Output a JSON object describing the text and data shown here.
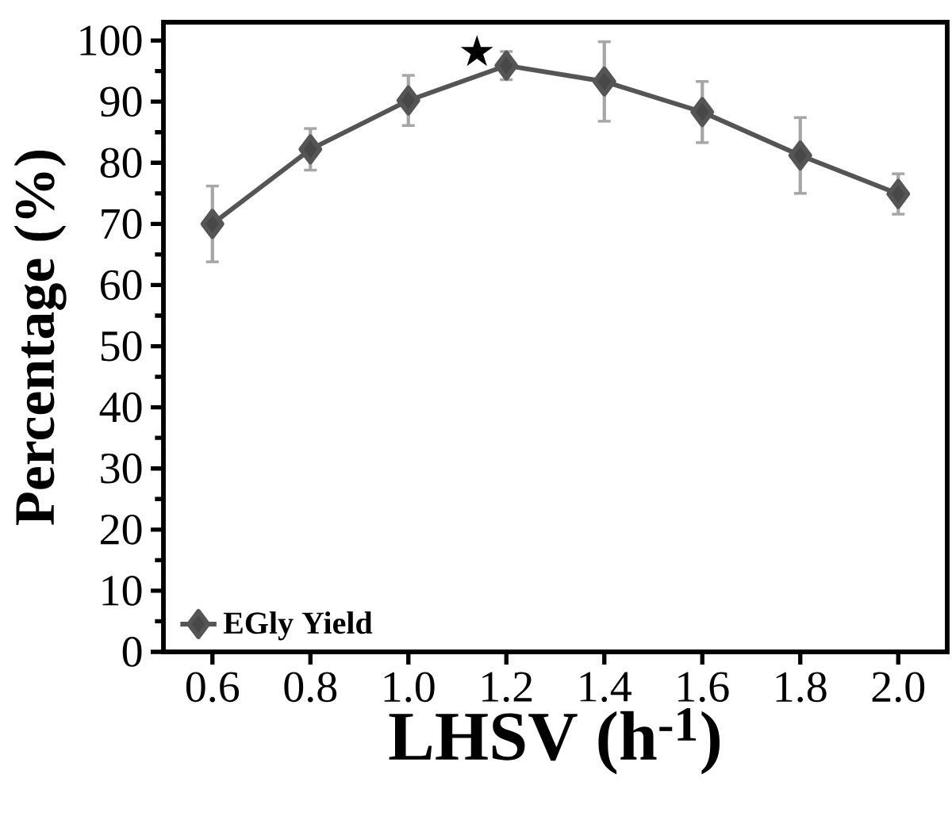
{
  "chart_data": {
    "type": "line",
    "xlabel": "LHSV (h$^{-1}$)",
    "ylabel": "Percentage (%)",
    "x": [
      0.6,
      0.8,
      1.0,
      1.2,
      1.4,
      1.6,
      1.8,
      2.0
    ],
    "series": [
      {
        "name": "EGly Yield",
        "color": "#555555",
        "values": [
          70.0,
          82.2,
          90.2,
          95.9,
          93.3,
          88.3,
          81.2,
          74.9
        ],
        "errors": [
          6.2,
          3.4,
          4.1,
          2.3,
          6.5,
          5.0,
          6.2,
          3.3
        ]
      }
    ],
    "xlim": [
      0.5,
      2.1
    ],
    "ylim": [
      0,
      103
    ],
    "xticks": [
      0.6,
      0.8,
      {
        "value": 1.0,
        "label": "1.0"
      },
      1.2,
      1.4,
      1.6,
      1.8,
      {
        "value": 2.0,
        "label": "2.0"
      }
    ],
    "yticks": [
      0,
      10,
      20,
      30,
      40,
      50,
      60,
      70,
      80,
      90,
      100
    ],
    "marker": "diamond",
    "line_style": "solid",
    "legend": "bottom left",
    "grid": false,
    "annotations": [
      "★"
    ]
  }
}
